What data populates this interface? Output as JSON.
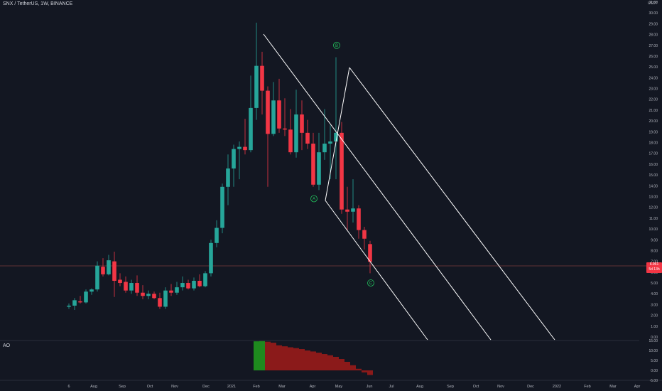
{
  "header": {
    "symbol": "SNX / TetherUS, 1W, BINANCE",
    "currency": "USDT"
  },
  "indicator": {
    "label": "AO"
  },
  "price_badge": {
    "value": "6.961",
    "sub": "5d 13h"
  },
  "colors": {
    "background": "#131722",
    "up": "#26a69a",
    "down": "#f23645",
    "ao_up": "#1e8a1e",
    "ao_down": "#8b1a1a",
    "channel": "#ffffff",
    "wave_label": "#22c55e",
    "axis_text": "#b2b5be",
    "crosshair": "#7a3b3b"
  },
  "chart_data": [
    {
      "type": "candlestick",
      "title": "SNX / TetherUS, 1W, BINANCE",
      "y_axis": {
        "ticks": [
          "0.00",
          "1.00",
          "2.00",
          "3.00",
          "4.00",
          "5.00",
          "6.00",
          "7.00",
          "8.00",
          "9.00",
          "10.00",
          "11.00",
          "12.00",
          "13.00",
          "14.00",
          "15.00",
          "16.00",
          "17.00",
          "18.00",
          "19.00",
          "20.00",
          "21.00",
          "22.00",
          "23.00",
          "24.00",
          "25.00",
          "26.00",
          "27.00",
          "28.00",
          "29.00",
          "30.00",
          "31.00"
        ],
        "range": [
          0,
          31
        ]
      },
      "x_axis": {
        "labels": [
          "6",
          "Aug",
          "Sep",
          "Oct",
          "Nov",
          "Dec",
          "2021",
          "Feb",
          "Mar",
          "Apr",
          "May",
          "Jun",
          "Jul",
          "Aug",
          "Sep",
          "Oct",
          "Nov",
          "Dec",
          "2022",
          "Feb",
          "Mar",
          "Apr"
        ]
      },
      "candles": [
        {
          "o": 2.8,
          "h": 3.1,
          "l": 2.6,
          "c": 2.9
        },
        {
          "o": 2.9,
          "h": 3.6,
          "l": 2.5,
          "c": 3.4
        },
        {
          "o": 3.3,
          "h": 3.8,
          "l": 3.1,
          "c": 3.2
        },
        {
          "o": 3.2,
          "h": 4.4,
          "l": 3.1,
          "c": 4.2
        },
        {
          "o": 4.2,
          "h": 4.5,
          "l": 3.9,
          "c": 4.4
        },
        {
          "o": 4.4,
          "h": 7.0,
          "l": 4.2,
          "c": 6.6
        },
        {
          "o": 6.5,
          "h": 7.3,
          "l": 5.6,
          "c": 5.8
        },
        {
          "o": 5.8,
          "h": 7.6,
          "l": 5.7,
          "c": 7.1
        },
        {
          "o": 7.0,
          "h": 7.9,
          "l": 3.7,
          "c": 5.2
        },
        {
          "o": 5.3,
          "h": 5.9,
          "l": 4.7,
          "c": 5.0
        },
        {
          "o": 5.1,
          "h": 5.6,
          "l": 4.1,
          "c": 4.3
        },
        {
          "o": 4.3,
          "h": 5.3,
          "l": 4.0,
          "c": 5.0
        },
        {
          "o": 5.0,
          "h": 5.7,
          "l": 3.8,
          "c": 4.1
        },
        {
          "o": 4.1,
          "h": 4.8,
          "l": 3.5,
          "c": 3.8
        },
        {
          "o": 3.8,
          "h": 4.3,
          "l": 3.5,
          "c": 4.0
        },
        {
          "o": 4.0,
          "h": 4.2,
          "l": 3.5,
          "c": 3.6
        },
        {
          "o": 3.6,
          "h": 4.1,
          "l": 2.6,
          "c": 2.8
        },
        {
          "o": 2.8,
          "h": 4.6,
          "l": 2.6,
          "c": 4.3
        },
        {
          "o": 4.3,
          "h": 4.9,
          "l": 3.8,
          "c": 4.1
        },
        {
          "o": 4.1,
          "h": 5.1,
          "l": 3.9,
          "c": 4.6
        },
        {
          "o": 4.6,
          "h": 5.6,
          "l": 4.3,
          "c": 5.0
        },
        {
          "o": 5.0,
          "h": 5.3,
          "l": 4.4,
          "c": 4.5
        },
        {
          "o": 4.5,
          "h": 5.5,
          "l": 4.3,
          "c": 5.2
        },
        {
          "o": 5.2,
          "h": 5.8,
          "l": 4.6,
          "c": 4.7
        },
        {
          "o": 4.7,
          "h": 6.1,
          "l": 4.6,
          "c": 5.9
        },
        {
          "o": 5.9,
          "h": 9.0,
          "l": 5.6,
          "c": 8.7
        },
        {
          "o": 8.7,
          "h": 10.8,
          "l": 8.3,
          "c": 10.1
        },
        {
          "o": 10.1,
          "h": 14.2,
          "l": 9.6,
          "c": 13.9
        },
        {
          "o": 13.9,
          "h": 16.9,
          "l": 12.2,
          "c": 15.6
        },
        {
          "o": 15.6,
          "h": 17.8,
          "l": 13.9,
          "c": 17.4
        },
        {
          "o": 17.4,
          "h": 18.1,
          "l": 14.6,
          "c": 17.6
        },
        {
          "o": 17.6,
          "h": 20.2,
          "l": 16.9,
          "c": 17.3
        },
        {
          "o": 17.3,
          "h": 24.2,
          "l": 17.1,
          "c": 21.2
        },
        {
          "o": 21.2,
          "h": 29.1,
          "l": 20.1,
          "c": 25.1
        },
        {
          "o": 25.1,
          "h": 26.4,
          "l": 20.6,
          "c": 22.8
        },
        {
          "o": 22.8,
          "h": 23.2,
          "l": 13.9,
          "c": 18.8
        },
        {
          "o": 18.8,
          "h": 23.6,
          "l": 18.6,
          "c": 21.9
        },
        {
          "o": 21.9,
          "h": 23.9,
          "l": 18.9,
          "c": 19.3
        },
        {
          "o": 19.3,
          "h": 22.1,
          "l": 18.6,
          "c": 19.2
        },
        {
          "o": 19.2,
          "h": 21.1,
          "l": 16.9,
          "c": 17.1
        },
        {
          "o": 17.1,
          "h": 22.9,
          "l": 16.6,
          "c": 20.6
        },
        {
          "o": 20.6,
          "h": 21.9,
          "l": 17.3,
          "c": 18.9
        },
        {
          "o": 18.9,
          "h": 20.1,
          "l": 17.4,
          "c": 17.9
        },
        {
          "o": 17.9,
          "h": 18.9,
          "l": 13.9,
          "c": 14.1
        },
        {
          "o": 14.1,
          "h": 18.9,
          "l": 13.6,
          "c": 17.1
        },
        {
          "o": 17.1,
          "h": 21.1,
          "l": 16.4,
          "c": 17.9
        },
        {
          "o": 17.9,
          "h": 19.6,
          "l": 14.6,
          "c": 18.1
        },
        {
          "o": 18.1,
          "h": 25.9,
          "l": 14.6,
          "c": 18.9
        },
        {
          "o": 18.9,
          "h": 19.9,
          "l": 11.4,
          "c": 11.8
        },
        {
          "o": 11.8,
          "h": 13.9,
          "l": 9.9,
          "c": 11.6
        },
        {
          "o": 11.6,
          "h": 14.6,
          "l": 10.6,
          "c": 11.9
        },
        {
          "o": 11.9,
          "h": 12.2,
          "l": 9.1,
          "c": 9.9
        },
        {
          "o": 9.9,
          "h": 10.2,
          "l": 8.1,
          "c": 9.1
        },
        {
          "o": 8.6,
          "h": 8.9,
          "l": 5.9,
          "c": 6.96
        }
      ],
      "annotations": [
        {
          "label": "A",
          "candle": 43,
          "price": 12.8
        },
        {
          "label": "B",
          "candle": 47,
          "price": 27.0
        },
        {
          "label": "C",
          "candle": 53,
          "price": 5.0
        }
      ],
      "current_price": 6.961
    },
    {
      "type": "bar",
      "title": "AO",
      "y_axis": {
        "ticks": [
          "-5.00",
          "0.00",
          "5.00",
          "10.00",
          "15.00"
        ],
        "range": [
          -5,
          15
        ]
      },
      "values": [
        14.6,
        14.7,
        14.4,
        13.9,
        12.6,
        12.1,
        11.6,
        11.2,
        10.7,
        10.0,
        9.5,
        8.9,
        8.2,
        7.6,
        6.8,
        5.7,
        4.3,
        2.6,
        0.8,
        -1.0,
        -2.3
      ],
      "colors_by_sign": "green for rising bars, red for falling bars"
    }
  ]
}
